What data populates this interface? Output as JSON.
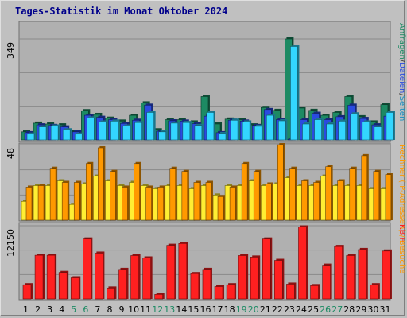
{
  "title": "Tages-Statistik im Monat Oktober 2024",
  "colors": {
    "background": "#c0c0c0",
    "plot_background": "#b0b0b0",
    "title": "#00008b",
    "anfragen": "#1d8a63",
    "dateien": "#2a4be0",
    "seiten": "#33d6ff",
    "besuche": "#ff9900",
    "rechner": "#ffee33",
    "kb": "#ff2020",
    "weekend_label": "#1d8a63"
  },
  "chart_data": [
    {
      "type": "bar",
      "panel": "top",
      "ytick": "349",
      "ymax": 349,
      "grid": true,
      "categories": [
        "1",
        "2",
        "3",
        "4",
        "5",
        "6",
        "7",
        "8",
        "9",
        "10",
        "11",
        "12",
        "13",
        "14",
        "15",
        "16",
        "17",
        "18",
        "19",
        "20",
        "21",
        "22",
        "23",
        "24",
        "25",
        "26",
        "27",
        "28",
        "29",
        "30",
        "31"
      ],
      "weekend_days": [
        "5",
        "6",
        "12",
        "13",
        "19",
        "20",
        "26",
        "27"
      ],
      "legend_parts": [
        {
          "text": "Anfragen",
          "color": "#1d8a63"
        },
        {
          "text": "/",
          "color": "#333333"
        },
        {
          "text": "Dateien",
          "color": "#2a4be0"
        },
        {
          "text": "/",
          "color": "#333333"
        },
        {
          "text": "Seiten",
          "color": "#1a8fc0"
        }
      ],
      "series": [
        {
          "values": [
            28,
            58,
            55,
            52,
            30,
            101,
            88,
            75,
            65,
            85,
            128,
            35,
            70,
            70,
            62,
            150,
            55,
            72,
            70,
            52,
            112,
            102,
            349,
            110,
            102,
            85,
            95,
            150,
            80,
            62,
            122
          ]
        },
        {
          "values": [
            25,
            52,
            50,
            45,
            28,
            85,
            78,
            70,
            57,
            68,
            120,
            30,
            66,
            65,
            56,
            82,
            25,
            68,
            65,
            50,
            105,
            70,
            2,
            70,
            92,
            70,
            80,
            120,
            74,
            52,
            82
          ]
        },
        {
          "values": [
            20,
            45,
            48,
            35,
            20,
            76,
            62,
            65,
            48,
            60,
            95,
            28,
            58,
            60,
            50,
            95,
            22,
            68,
            62,
            47,
            85,
            66,
            323,
            55,
            70,
            55,
            65,
            90,
            62,
            45,
            95
          ]
        }
      ]
    },
    {
      "type": "bar",
      "panel": "middle",
      "ytick": "48",
      "ymax": 48,
      "grid": true,
      "legend_parts": [
        {
          "text": "Rechner",
          "color": "#ff9900"
        },
        {
          "text": " (IP-Adressen) / ",
          "color": "#ff9900"
        },
        {
          "text": "Besuche",
          "color": "#ff9900"
        }
      ],
      "series": [
        {
          "values": [
            12,
            22,
            22,
            25,
            10,
            23,
            28,
            25,
            22,
            24,
            22,
            20,
            22,
            22,
            20,
            22,
            16,
            22,
            22,
            25,
            22,
            23,
            27,
            22,
            22,
            28,
            22,
            22,
            22,
            20,
            20
          ]
        },
        {
          "values": [
            21,
            22,
            33,
            24,
            24,
            36,
            46,
            31,
            21,
            36,
            21,
            21,
            33,
            31,
            24,
            24,
            15,
            21,
            36,
            31,
            23,
            48,
            33,
            25,
            24,
            34,
            25,
            33,
            41,
            31,
            29
          ]
        }
      ]
    },
    {
      "type": "bar",
      "panel": "bottom",
      "ytick": "12150",
      "ymax": 12150,
      "grid": true,
      "legend_parts": [
        {
          "text": "KB F",
          "color": "#ff2020"
        }
      ],
      "series": [
        {
          "values": [
            2350,
            7250,
            7250,
            4400,
            3500,
            9950,
            7600,
            1800,
            4900,
            7200,
            6800,
            750,
            8900,
            9200,
            4200,
            4900,
            2050,
            2350,
            7200,
            6950,
            9950,
            6400,
            2450,
            11950,
            2200,
            5600,
            8700,
            7200,
            8200,
            2350,
            7950
          ]
        }
      ]
    }
  ]
}
